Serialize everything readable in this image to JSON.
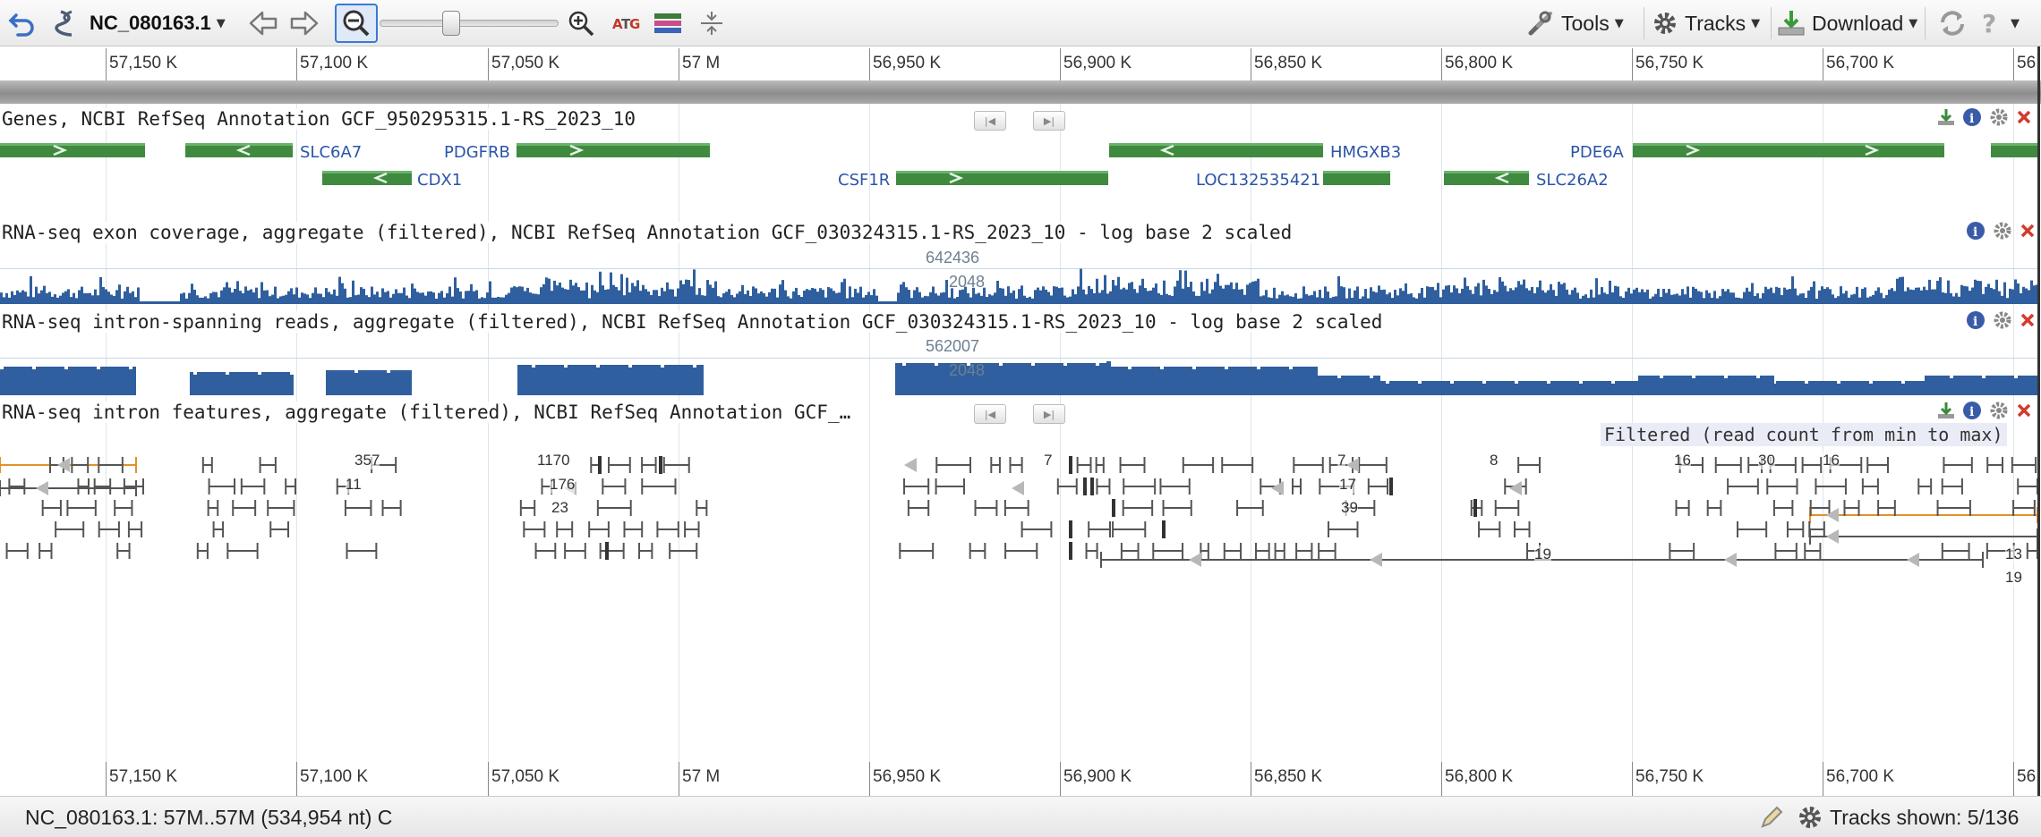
{
  "toolbar": {
    "back_icon": "undo-icon",
    "sequence_name": "NC_080163.1",
    "menus": {
      "tools": "Tools",
      "tracks": "Tracks",
      "download": "Download"
    }
  },
  "ruler": {
    "labels": [
      "57,150 K",
      "57,100 K",
      "57,050 K",
      "57 M",
      "56,950 K",
      "56,900 K",
      "56,850 K",
      "56,800 K",
      "56,750 K",
      "56,700 K",
      "56,"
    ]
  },
  "tracks": {
    "genes": {
      "label": "Genes, NCBI RefSeq Annotation GCF_950295315.1-RS_2023_10",
      "gene_names": [
        "SLC6A7",
        "PDGFRB",
        "HMGXB3",
        "PDE6A",
        "CDX1",
        "CSF1R",
        "LOC132535421",
        "SLC26A2"
      ]
    },
    "exon_coverage": {
      "label": "RNA-seq exon coverage, aggregate (filtered), NCBI RefSeq Annotation GCF_030324315.1-RS_2023_10 - log base 2 scaled",
      "max_score": "642436",
      "mid_score": "2048"
    },
    "intron_reads": {
      "label": "RNA-seq intron-spanning reads, aggregate (filtered), NCBI RefSeq Annotation GCF_030324315.1-RS_2023_10 - log base 2 scaled",
      "max_score": "562007",
      "mid_score": "2048"
    },
    "intron_features": {
      "label": "RNA-seq intron features, aggregate (filtered), NCBI RefSeq Annotation GCF_…",
      "filter_note": "Filtered (read count from min to max)",
      "counts": [
        "357",
        "1170",
        "11",
        "176",
        "23",
        "7",
        "7",
        "17",
        "39",
        "8",
        "16",
        "30",
        "16",
        "19",
        "13",
        "19"
      ]
    }
  },
  "status": {
    "location": "NC_080163.1: 57M..57M (534,954 nt) C",
    "tracks_shown": "Tracks shown: 5/136"
  }
}
